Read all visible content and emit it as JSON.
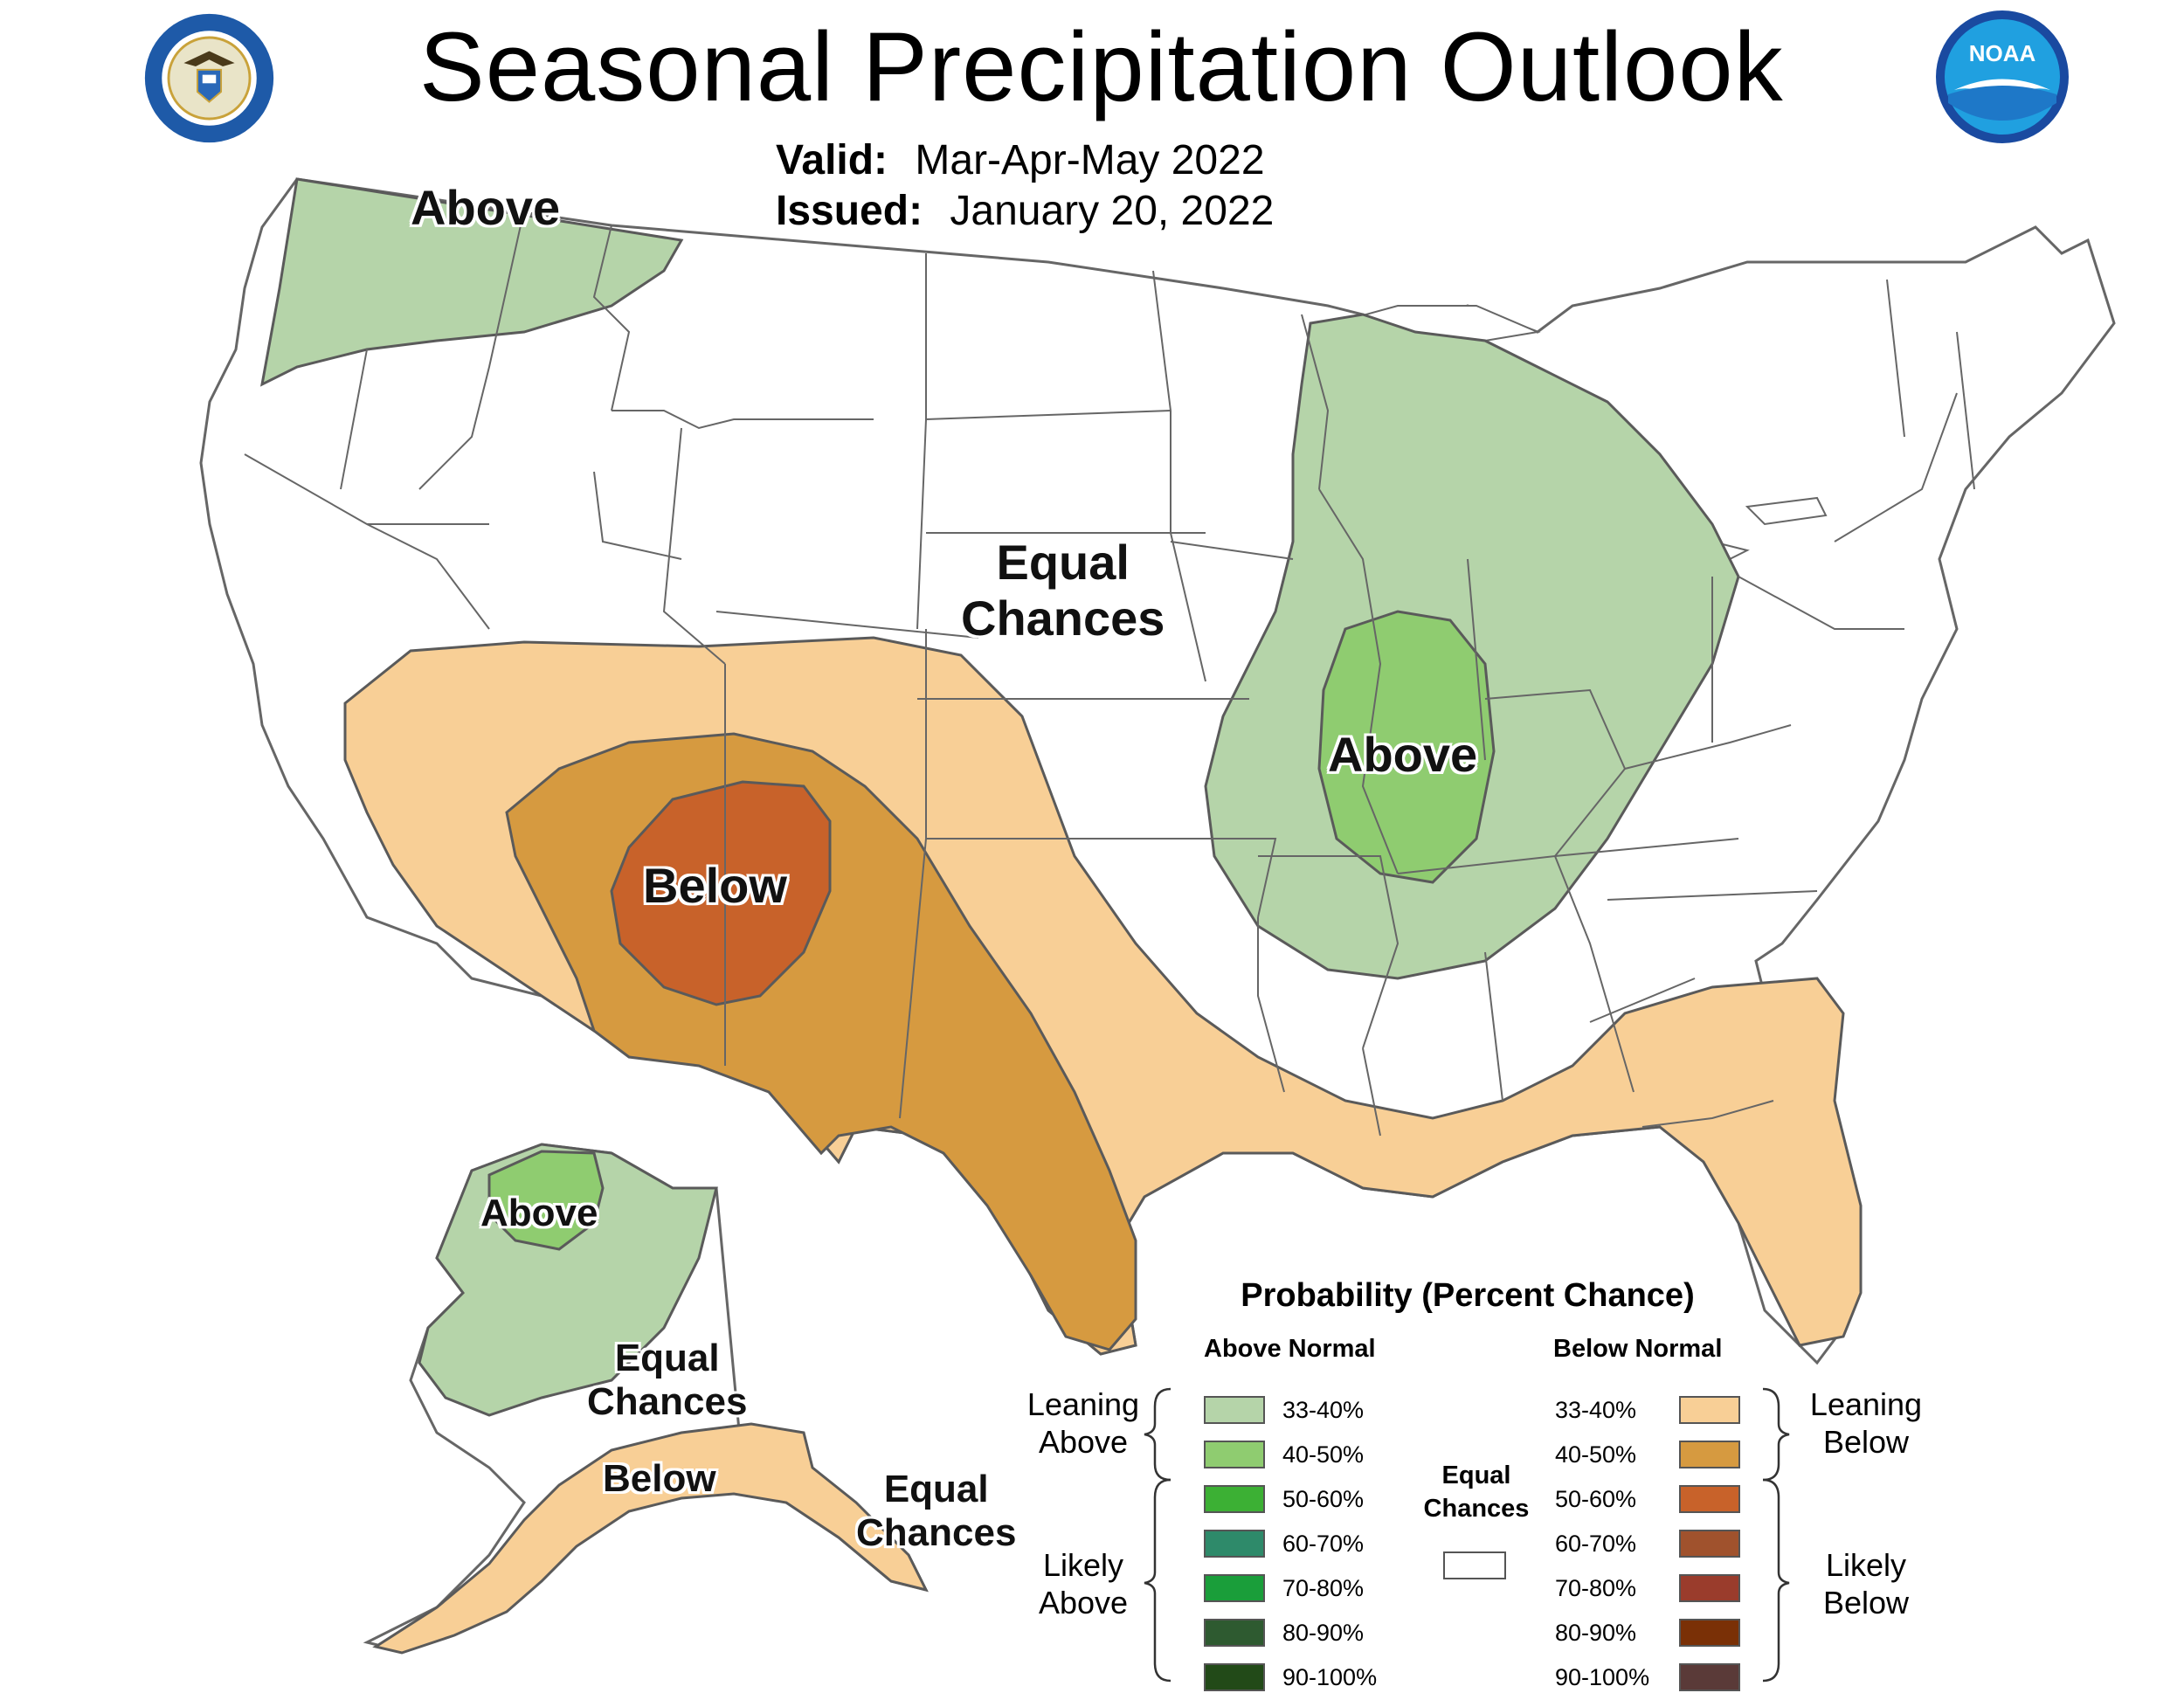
{
  "title": "Seasonal Precipitation Outlook",
  "valid_label": "Valid:",
  "valid_value": "Mar-Apr-May 2022",
  "issued_label": "Issued:",
  "issued_value": "January 20, 2022",
  "logos": {
    "left": "seal-department-of-commerce",
    "right": "noaa-logo",
    "noaa_text": "NOAA"
  },
  "map_labels": {
    "northwest": "Above",
    "central": [
      "Equal",
      "Chances"
    ],
    "midwest": "Above",
    "southwest": "Below",
    "alaska_north": "Above",
    "alaska_central": [
      "Equal",
      "Chances"
    ],
    "alaska_south": "Below",
    "alaska_east": [
      "Equal",
      "Chances"
    ]
  },
  "colors": {
    "above_33_40": "#b5d4a9",
    "above_40_50": "#8fcc70",
    "below_33_40": "#f8cf96",
    "below_40_50": "#d69a40",
    "below_50_60": "#c8622a",
    "land": "#ffffff",
    "boundary": "#7a7a7a"
  },
  "legend": {
    "title": "Probability (Percent Chance)",
    "above_header": "Above Normal",
    "below_header": "Below Normal",
    "equal_chances": [
      "Equal",
      "Chances"
    ],
    "leaning_above": [
      "Leaning",
      "Above"
    ],
    "likely_above": [
      "Likely",
      "Above"
    ],
    "leaning_below": [
      "Leaning",
      "Below"
    ],
    "likely_below": [
      "Likely",
      "Below"
    ],
    "above_bins": [
      {
        "label": "33-40%",
        "color": "#b5d4a9"
      },
      {
        "label": "40-50%",
        "color": "#8fcc70"
      },
      {
        "label": "50-60%",
        "color": "#3cb034"
      },
      {
        "label": "60-70%",
        "color": "#2e8a6a"
      },
      {
        "label": "70-80%",
        "color": "#1a9e3a"
      },
      {
        "label": "80-90%",
        "color": "#2e5a30"
      },
      {
        "label": "90-100%",
        "color": "#224a18"
      }
    ],
    "below_bins": [
      {
        "label": "33-40%",
        "color": "#f8cf96"
      },
      {
        "label": "40-50%",
        "color": "#d69a40"
      },
      {
        "label": "50-60%",
        "color": "#c8622a"
      },
      {
        "label": "60-70%",
        "color": "#a0522d"
      },
      {
        "label": "70-80%",
        "color": "#9a3c2c"
      },
      {
        "label": "80-90%",
        "color": "#7a3006"
      },
      {
        "label": "90-100%",
        "color": "#5a3a38"
      }
    ]
  }
}
